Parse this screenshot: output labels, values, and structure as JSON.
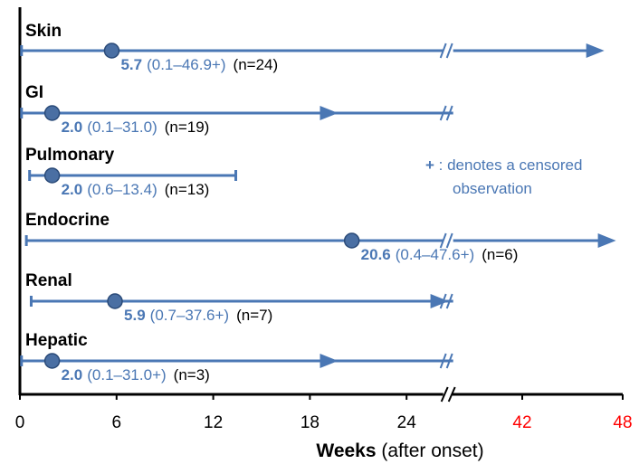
{
  "chart_data": {
    "type": "range-plot",
    "title": "",
    "xlabel_bold": "Weeks",
    "xlabel_rest": " (after onset)",
    "ticks": [
      {
        "value": 0,
        "label": "0",
        "color": "#000000"
      },
      {
        "value": 6,
        "label": "6",
        "color": "#000000"
      },
      {
        "value": 12,
        "label": "12",
        "color": "#000000"
      },
      {
        "value": 18,
        "label": "18",
        "color": "#000000"
      },
      {
        "value": 24,
        "label": "24",
        "color": "#000000"
      },
      {
        "value": 42,
        "label": "42",
        "color": "#ff0000"
      },
      {
        "value": 48,
        "label": "48",
        "color": "#ff0000"
      }
    ],
    "axis_break": {
      "after": 26.5,
      "resume": 39.5
    },
    "series": [
      {
        "category": "Skin",
        "min": 0.1,
        "max": 46.9,
        "median": 5.7,
        "median_label": "5.7",
        "range_label": "(0.1–46.9+)",
        "n_label": "(n=24)",
        "censored": true
      },
      {
        "category": "GI",
        "min": 0.1,
        "max": 31.0,
        "median": 2.0,
        "median_label": "2.0",
        "range_label": "(0.1–31.0)",
        "n_label": "(n=19)",
        "censored": false
      },
      {
        "category": "Pulmonary",
        "min": 0.6,
        "max": 13.4,
        "median": 2.0,
        "median_label": "2.0",
        "range_label": "(0.6–13.4)",
        "n_label": "(n=13)",
        "censored": false
      },
      {
        "category": "Endocrine",
        "min": 0.4,
        "max": 47.6,
        "median": 20.6,
        "median_label": "20.6",
        "range_label": "(0.4–47.6+)",
        "n_label": "(n=6)",
        "censored": true
      },
      {
        "category": "Renal",
        "min": 0.7,
        "max": 37.6,
        "median": 5.9,
        "median_label": "5.9",
        "range_label": "(0.7–37.6+)",
        "n_label": "(n=7)",
        "censored": true
      },
      {
        "category": "Hepatic",
        "min": 0.1,
        "max": 31.0,
        "median": 2.0,
        "median_label": "2.0",
        "range_label": "(0.1–31.0+)",
        "n_label": "(n=3)",
        "censored": true
      }
    ],
    "note_symbol": "+",
    "note_line1": " : denotes a censored",
    "note_line2": "observation",
    "colors": {
      "series": "#4a77b4",
      "text_accent": "#4a77b4",
      "marker_fill": "#4a6fa3",
      "axis": "#000000",
      "red_ticks": "#ff0000"
    }
  }
}
